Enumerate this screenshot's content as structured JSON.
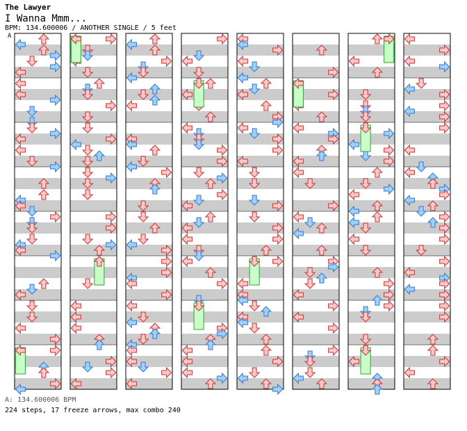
{
  "header": {
    "artist": "The Lawyer",
    "title": "I Wanna Mmm...",
    "info": "BPM: 134.600006 / ANOTHER SINGLE / 5 feet",
    "marker": "A"
  },
  "footer": {
    "bpm": "A: 134.600006 BPM",
    "stats": "224 steps, 17 freeze arrows, max combo 240"
  },
  "colors": {
    "stripe": "#cccccc",
    "panel_border": "#000000",
    "quarter_arrow_fill": "#ffc8c8",
    "quarter_arrow_stroke": "#c83232",
    "eighth_arrow_fill": "#a0d0ff",
    "eighth_arrow_stroke": "#3278c8",
    "freeze_fill": "#c8ffc8",
    "freeze_stroke": "#32a032"
  },
  "chart": {
    "columns": 8,
    "measures_per_column": 8,
    "lanes": [
      "left",
      "down",
      "up",
      "right"
    ],
    "notes": [
      [
        0,
        0,
        0,
        0
      ],
      [
        0,
        0,
        1,
        0
      ],
      [
        0,
        1,
        0,
        0
      ],
      [
        0,
        1,
        3,
        0
      ],
      [
        0,
        2,
        0,
        0
      ],
      [
        0,
        2,
        2,
        0
      ],
      [
        0,
        3,
        0,
        0
      ],
      [
        0,
        3,
        3,
        0
      ],
      [
        0,
        4,
        1,
        0
      ],
      [
        0,
        4,
        3,
        0
      ],
      [
        0,
        5,
        0,
        0
      ],
      [
        0,
        5,
        2,
        0
      ],
      [
        0,
        6,
        1,
        0
      ],
      [
        0,
        6,
        3,
        0
      ],
      [
        0,
        7,
        0,
        0
      ],
      [
        0,
        7,
        2,
        0
      ]
    ]
  }
}
